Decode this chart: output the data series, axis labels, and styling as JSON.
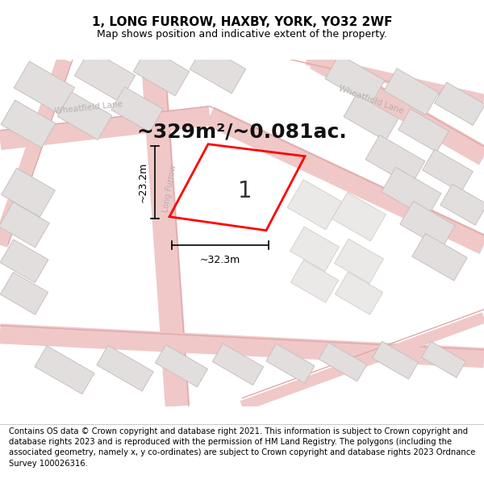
{
  "title": "1, LONG FURROW, HAXBY, YORK, YO32 2WF",
  "subtitle": "Map shows position and indicative extent of the property.",
  "area_text": "~329m²/~0.081ac.",
  "dim_width": "~32.3m",
  "dim_height": "~23.2m",
  "plot_label": "1",
  "footer_text": "Contains OS data © Crown copyright and database right 2021. This information is subject to Crown copyright and database rights 2023 and is reproduced with the permission of HM Land Registry. The polygons (including the associated geometry, namely x, y co-ordinates) are subject to Crown copyright and database rights 2023 Ordnance Survey 100026316.",
  "map_bg": "#f7f4f4",
  "road_color": "#f0c8c8",
  "road_edge_color": "#e8b8b8",
  "building_fill": "#e2dede",
  "building_edge": "#c8c0c0",
  "plot_color": "#ff0000",
  "title_fontsize": 11,
  "subtitle_fontsize": 9,
  "area_fontsize": 18,
  "plot_label_fontsize": 20,
  "dim_fontsize": 9,
  "footer_fontsize": 7.2,
  "street_label_color": "#b8b0b0",
  "street_label_size": 7.5
}
